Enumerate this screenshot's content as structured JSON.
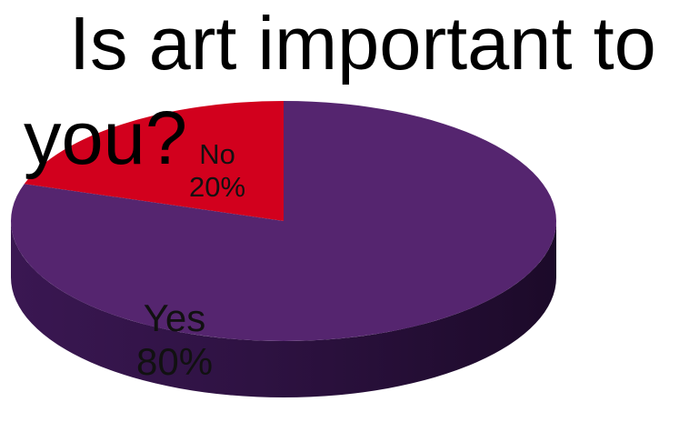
{
  "chart_data": {
    "type": "pie",
    "title_lines": [
      "Is art important to",
      "you?"
    ],
    "slices": [
      {
        "label": "No",
        "value": 20,
        "value_label": "20%",
        "color": "#d2001d",
        "side_color": "#8a0012"
      },
      {
        "label": "Yes",
        "value": 80,
        "value_label": "80%",
        "color": "#55256f",
        "side_color": "#2e1242"
      }
    ],
    "three_d": true,
    "legend": "none"
  }
}
